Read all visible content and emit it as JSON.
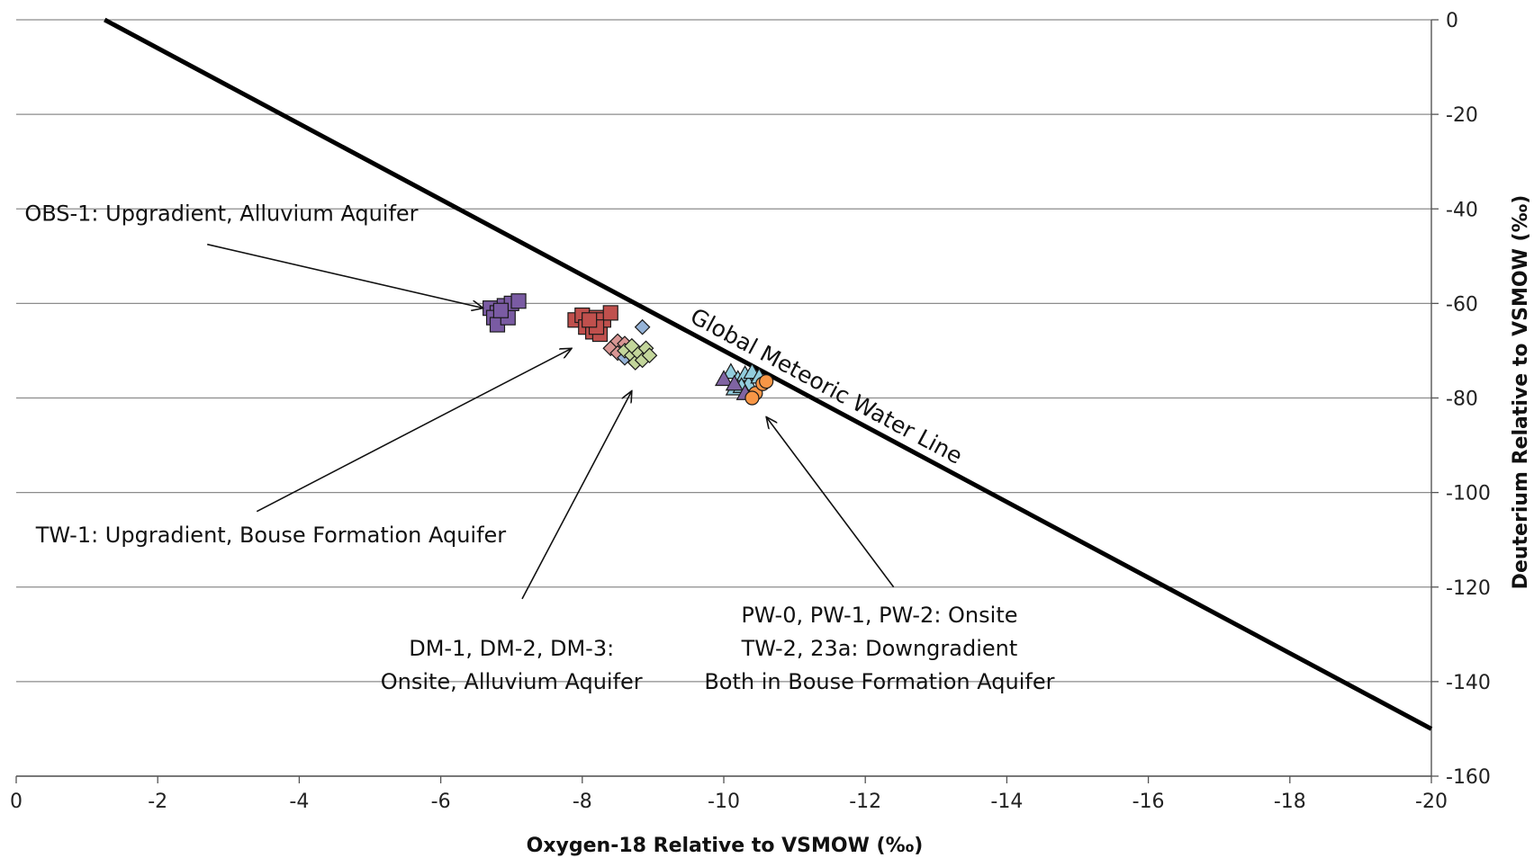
{
  "chart_data": {
    "type": "scatter",
    "title": "",
    "xlabel": "Oxygen-18 Relative to VSMOW (‰)",
    "ylabel": "Deuterium Relative to VSMOW (‰)",
    "xlim": [
      0,
      -20
    ],
    "ylim": [
      -160,
      0
    ],
    "x_ticks": [
      0,
      -2,
      -4,
      -6,
      -8,
      -10,
      -12,
      -14,
      -16,
      -18,
      -20
    ],
    "y_ticks": [
      0,
      -20,
      -40,
      -60,
      -80,
      -100,
      -120,
      -140,
      -160
    ],
    "y_axis_side": "right",
    "grid": "horizontal",
    "legend": "none",
    "reference_line": {
      "label": "Global Meteoric Water Line",
      "slope": 8,
      "intercept": 10,
      "color": "#000000"
    },
    "series": [
      {
        "marker": "square",
        "color": "#7a5ba3",
        "points": [
          [
            -6.7,
            -61
          ],
          [
            -6.8,
            -62
          ],
          [
            -6.9,
            -60.5
          ],
          [
            -6.75,
            -63
          ],
          [
            -6.8,
            -64.5
          ],
          [
            -6.95,
            -63
          ],
          [
            -7.0,
            -60
          ],
          [
            -7.1,
            -59.5
          ],
          [
            -6.85,
            -61.5
          ]
        ]
      },
      {
        "marker": "square",
        "color": "#c0504d",
        "points": [
          [
            -7.9,
            -63.5
          ],
          [
            -8.0,
            -62.5
          ],
          [
            -8.1,
            -64.5
          ],
          [
            -8.2,
            -63
          ],
          [
            -8.05,
            -65
          ],
          [
            -8.15,
            -66
          ],
          [
            -8.25,
            -66.5
          ],
          [
            -8.3,
            -63.5
          ],
          [
            -8.4,
            -62
          ],
          [
            -8.2,
            -65
          ],
          [
            -8.1,
            -63.5
          ]
        ]
      },
      {
        "marker": "diamond",
        "color": "#d99694",
        "points": [
          [
            -8.4,
            -69.5
          ],
          [
            -8.5,
            -68
          ],
          [
            -8.6,
            -68.5
          ],
          [
            -8.5,
            -70.5
          ]
        ]
      },
      {
        "marker": "diamond",
        "color": "#95b3d7",
        "points": [
          [
            -8.85,
            -65
          ],
          [
            -8.6,
            -71.5
          ],
          [
            -8.7,
            -70
          ]
        ]
      },
      {
        "marker": "diamond",
        "color": "#c3d69b",
        "points": [
          [
            -8.6,
            -70
          ],
          [
            -8.7,
            -71
          ],
          [
            -8.75,
            -72.5
          ],
          [
            -8.8,
            -70.5
          ],
          [
            -8.9,
            -69.5
          ],
          [
            -8.85,
            -72
          ],
          [
            -8.95,
            -71
          ],
          [
            -8.7,
            -69
          ]
        ]
      },
      {
        "marker": "triangle",
        "color": "#93cddd",
        "points": [
          [
            -10.1,
            -74.5
          ],
          [
            -10.2,
            -76
          ],
          [
            -10.3,
            -75
          ],
          [
            -10.35,
            -77
          ],
          [
            -10.4,
            -74.5
          ],
          [
            -10.5,
            -75.5
          ],
          [
            -10.15,
            -78
          ],
          [
            -10.25,
            -77.5
          ]
        ]
      },
      {
        "marker": "triangle",
        "color": "#8064a2",
        "points": [
          [
            -10.0,
            -76
          ],
          [
            -10.15,
            -77
          ],
          [
            -10.3,
            -79
          ]
        ]
      },
      {
        "marker": "circle",
        "color": "#f79646",
        "points": [
          [
            -10.45,
            -79
          ],
          [
            -10.55,
            -77
          ],
          [
            -10.4,
            -80
          ],
          [
            -10.6,
            -76.5
          ]
        ]
      }
    ],
    "annotations": [
      {
        "lines": [
          "OBS-1: Upgradient, Alluvium Aquifer"
        ],
        "text_x": -2.9,
        "text_y": -42.5,
        "arrow_from": [
          -2.7,
          -47.5
        ],
        "arrow_to": [
          -6.6,
          -61
        ]
      },
      {
        "lines": [
          "TW-1: Upgradient, Bouse Formation Aquifer"
        ],
        "text_x": -3.6,
        "text_y": -110.5,
        "arrow_from": [
          -3.4,
          -104
        ],
        "arrow_to": [
          -7.85,
          -69.5
        ]
      },
      {
        "lines": [
          "DM-1, DM-2, DM-3:",
          "Onsite, Alluvium Aquifer"
        ],
        "text_x": -7.0,
        "text_y": -134.5,
        "arrow_from": [
          -7.15,
          -122.5
        ],
        "arrow_to": [
          -8.7,
          -78.5
        ]
      },
      {
        "lines": [
          "PW-0, PW-1, PW-2: Onsite",
          "TW-2, 23a: Downgradient",
          "Both in Bouse Formation Aquifer"
        ],
        "text_x": -12.2,
        "text_y": -127.5,
        "arrow_from": [
          -12.4,
          -120
        ],
        "arrow_to": [
          -10.6,
          -84
        ]
      }
    ]
  }
}
